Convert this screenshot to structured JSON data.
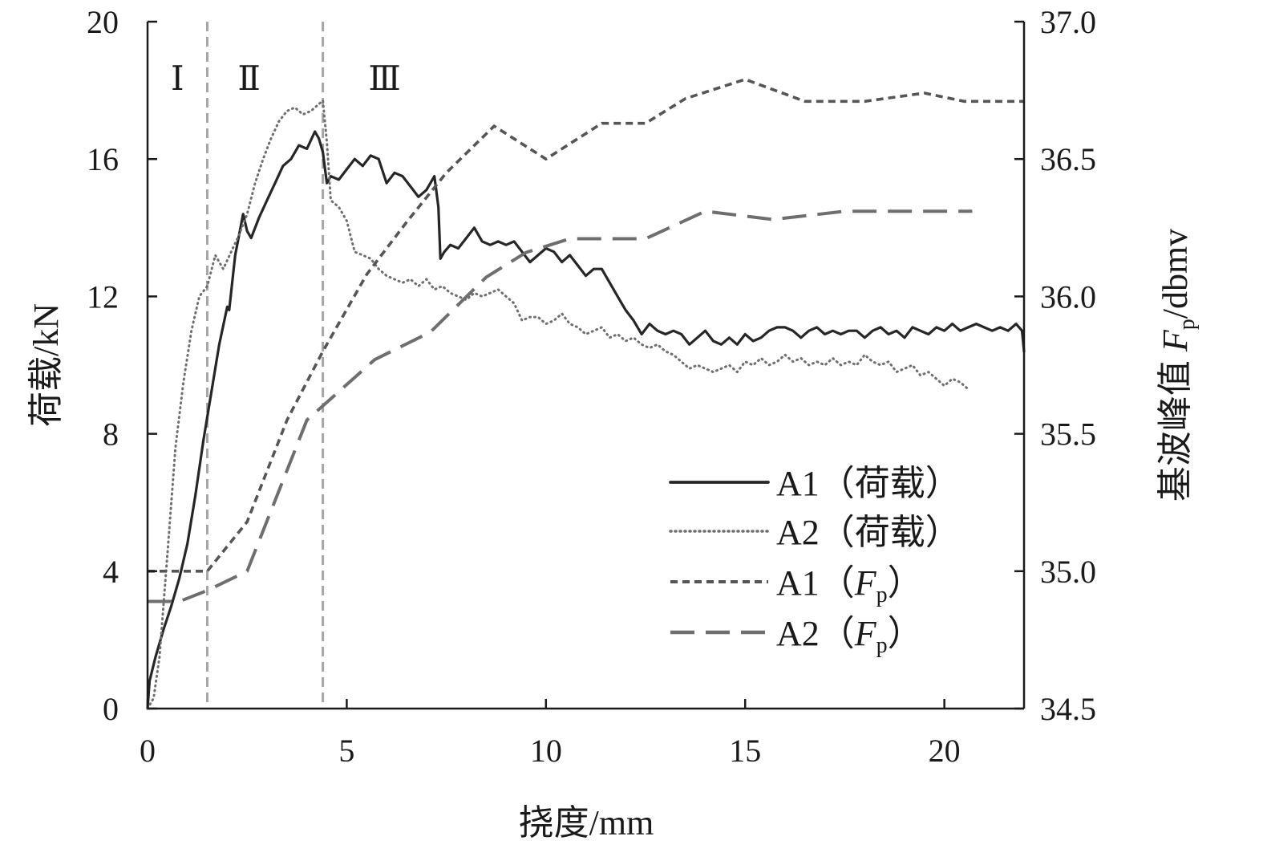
{
  "chart_data": {
    "type": "line",
    "title": "",
    "xlabel": "挠度/mm",
    "ylabel_left": "荷载/kN",
    "ylabel_right": {
      "main": "基波峰值 ",
      "var": "F",
      "sub": "p",
      "unit": "/dbmv"
    },
    "xlim": [
      0,
      22
    ],
    "ylim_left": [
      0,
      20
    ],
    "ylim_right": [
      34.5,
      37.0
    ],
    "x_ticks": [
      "0",
      "5",
      "10",
      "15",
      "20"
    ],
    "x_tick_values": [
      0,
      5,
      10,
      15,
      20
    ],
    "y_left_ticks": [
      "0",
      "4",
      "8",
      "12",
      "16",
      "20"
    ],
    "y_left_tick_values": [
      0,
      4,
      8,
      12,
      16,
      20
    ],
    "y_right_ticks": [
      "34.5",
      "35.0",
      "35.5",
      "36.0",
      "36.5",
      "37.0"
    ],
    "y_right_tick_values": [
      34.5,
      35.0,
      35.5,
      36.0,
      36.5,
      37.0
    ],
    "grid": false,
    "legend_position": "lower-right",
    "stage_boundaries": [
      1.5,
      4.4
    ],
    "stage_labels": [
      {
        "text": "Ⅰ",
        "x": 0.75
      },
      {
        "text": "Ⅱ",
        "x": 2.55
      },
      {
        "text": "Ⅲ",
        "x": 5.95
      }
    ],
    "colors": {
      "axis": "#1a1a1a",
      "boundary": "#a6a6a6",
      "series_dark": "#262626",
      "series_mid": "#555555",
      "series_light": "#6e6e6e"
    },
    "series": [
      {
        "name": "A1（荷载）",
        "legend_parts": [
          "A1（荷载）"
        ],
        "axis": "left",
        "style": "solid",
        "x": [
          0,
          0.05,
          0.2,
          0.4,
          0.6,
          0.8,
          1.0,
          1.2,
          1.4,
          1.6,
          1.8,
          2.0,
          2.05,
          2.2,
          2.4,
          2.5,
          2.6,
          2.8,
          3.0,
          3.2,
          3.4,
          3.6,
          3.8,
          4.0,
          4.2,
          4.3,
          4.4,
          4.5,
          4.6,
          4.8,
          5.0,
          5.2,
          5.4,
          5.6,
          5.8,
          6.0,
          6.2,
          6.4,
          6.6,
          6.8,
          7.0,
          7.2,
          7.3,
          7.35,
          7.45,
          7.6,
          7.8,
          8.0,
          8.2,
          8.4,
          8.6,
          8.8,
          9.0,
          9.2,
          9.4,
          9.6,
          9.8,
          10.0,
          10.2,
          10.4,
          10.6,
          10.8,
          11.0,
          11.2,
          11.4,
          11.6,
          11.8,
          12.0,
          12.2,
          12.4,
          12.6,
          12.8,
          13.0,
          13.2,
          13.4,
          13.6,
          13.8,
          14.0,
          14.2,
          14.4,
          14.6,
          14.8,
          15.0,
          15.2,
          15.4,
          15.6,
          15.8,
          16.0,
          16.2,
          16.4,
          16.6,
          16.8,
          17.0,
          17.2,
          17.4,
          17.6,
          17.8,
          18.0,
          18.2,
          18.4,
          18.6,
          18.8,
          19.0,
          19.2,
          19.4,
          19.6,
          19.8,
          20.0,
          20.2,
          20.4,
          20.6,
          20.8,
          21.0,
          21.2,
          21.4,
          21.6,
          21.8,
          21.95,
          22.0
        ],
        "y": [
          0,
          0.8,
          1.5,
          2.3,
          3.0,
          3.8,
          4.8,
          6.2,
          7.8,
          9.2,
          10.6,
          11.7,
          11.6,
          13.2,
          14.4,
          13.9,
          13.7,
          14.3,
          14.8,
          15.3,
          15.8,
          16.0,
          16.4,
          16.3,
          16.8,
          16.6,
          16.2,
          15.3,
          15.5,
          15.4,
          15.7,
          16.0,
          15.8,
          16.1,
          16.0,
          15.3,
          15.6,
          15.5,
          15.2,
          14.9,
          15.1,
          15.5,
          14.6,
          13.1,
          13.3,
          13.5,
          13.4,
          13.7,
          14.0,
          13.6,
          13.5,
          13.6,
          13.5,
          13.6,
          13.3,
          13.0,
          13.2,
          13.4,
          13.3,
          13.0,
          13.2,
          12.9,
          12.6,
          12.8,
          12.8,
          12.4,
          12.0,
          11.6,
          11.3,
          10.9,
          11.2,
          11.0,
          10.9,
          11.0,
          10.9,
          10.6,
          10.8,
          11.0,
          10.7,
          10.6,
          10.8,
          10.6,
          10.9,
          10.7,
          10.8,
          11.0,
          11.1,
          11.1,
          11.0,
          10.8,
          11.0,
          11.1,
          10.9,
          11.0,
          10.9,
          11.0,
          11.0,
          10.8,
          11.0,
          11.1,
          10.9,
          11.0,
          10.8,
          11.1,
          11.0,
          10.9,
          11.1,
          11.0,
          11.2,
          11.0,
          11.1,
          11.2,
          11.1,
          11.0,
          11.1,
          11.0,
          11.2,
          11.0,
          10.4
        ]
      },
      {
        "name": "A2（荷载）",
        "legend_parts": [
          "A2（荷载）"
        ],
        "axis": "left",
        "style": "dotted",
        "x": [
          0,
          0.15,
          0.3,
          0.5,
          0.7,
          0.9,
          1.1,
          1.3,
          1.5,
          1.7,
          1.9,
          2.1,
          2.3,
          2.5,
          2.7,
          2.9,
          3.1,
          3.3,
          3.5,
          3.7,
          3.9,
          4.1,
          4.3,
          4.4,
          4.5,
          4.6,
          4.8,
          5.0,
          5.2,
          5.4,
          5.6,
          5.8,
          6.0,
          6.2,
          6.4,
          6.6,
          6.8,
          7.0,
          7.2,
          7.4,
          7.6,
          7.8,
          8.0,
          8.2,
          8.4,
          8.6,
          8.8,
          9.0,
          9.2,
          9.4,
          9.6,
          9.8,
          10.0,
          10.2,
          10.4,
          10.6,
          10.8,
          11.0,
          11.2,
          11.4,
          11.6,
          11.8,
          12.0,
          12.2,
          12.4,
          12.6,
          12.8,
          13.0,
          13.2,
          13.4,
          13.6,
          13.8,
          14.0,
          14.2,
          14.4,
          14.6,
          14.8,
          15.0,
          15.2,
          15.4,
          15.6,
          15.8,
          16.0,
          16.2,
          16.4,
          16.6,
          16.8,
          17.0,
          17.2,
          17.4,
          17.6,
          17.8,
          18.0,
          18.2,
          18.4,
          18.6,
          18.8,
          19.0,
          19.2,
          19.4,
          19.6,
          19.8,
          20.0,
          20.2,
          20.4,
          20.6
        ],
        "y": [
          0,
          0.3,
          1.5,
          4.5,
          7.6,
          9.5,
          11.0,
          12.0,
          12.3,
          13.2,
          12.8,
          13.3,
          13.8,
          14.4,
          15.3,
          16.0,
          16.6,
          17.1,
          17.4,
          17.5,
          17.3,
          17.4,
          17.6,
          17.7,
          16.5,
          14.8,
          14.6,
          14.2,
          13.3,
          13.2,
          13.1,
          12.8,
          12.6,
          12.5,
          12.4,
          12.5,
          12.3,
          12.5,
          12.2,
          12.3,
          12.1,
          12.0,
          11.9,
          12.1,
          12.0,
          12.1,
          12.2,
          12.0,
          11.8,
          11.3,
          11.4,
          11.4,
          11.2,
          11.3,
          11.5,
          11.2,
          11.1,
          10.9,
          11.0,
          11.1,
          10.8,
          10.9,
          10.7,
          10.8,
          10.6,
          10.5,
          10.6,
          10.4,
          10.3,
          10.1,
          9.9,
          10.0,
          9.9,
          9.8,
          9.9,
          10.0,
          9.8,
          10.1,
          10.0,
          10.2,
          10.0,
          10.1,
          10.3,
          10.1,
          10.2,
          10.0,
          10.1,
          10.0,
          10.2,
          10.0,
          10.1,
          10.0,
          10.3,
          10.1,
          10.0,
          10.1,
          9.8,
          9.9,
          10.0,
          9.7,
          9.8,
          9.6,
          9.4,
          9.6,
          9.5,
          9.3
        ]
      },
      {
        "name": "A1（Fp）",
        "legend_parts": [
          "A1（",
          "F",
          "p",
          "）"
        ],
        "axis": "right",
        "style": "short-dash",
        "x": [
          0,
          1.5,
          2.5,
          3.5,
          4.4,
          5.5,
          6.5,
          7.5,
          8.7,
          10.0,
          11.4,
          12.5,
          13.5,
          15.0,
          16.5,
          18.0,
          19.5,
          20.5,
          22.0
        ],
        "y": [
          35.0,
          35.0,
          35.18,
          35.55,
          35.8,
          36.08,
          36.27,
          36.45,
          36.62,
          36.5,
          36.63,
          36.63,
          36.72,
          36.79,
          36.71,
          36.71,
          36.74,
          36.71,
          36.71
        ]
      },
      {
        "name": "A2（Fp）",
        "legend_parts": [
          "A2（",
          "F",
          "p",
          "）"
        ],
        "axis": "right",
        "style": "long-dash",
        "x": [
          0,
          0.8,
          1.5,
          2.5,
          4.0,
          5.7,
          7.1,
          8.5,
          9.5,
          10.6,
          12.5,
          14.0,
          15.7,
          17.5,
          19.5,
          20.7
        ],
        "y": [
          34.89,
          34.89,
          34.93,
          35.0,
          35.55,
          35.77,
          35.87,
          36.07,
          36.16,
          36.21,
          36.21,
          36.31,
          36.28,
          36.31,
          36.31,
          36.31
        ]
      }
    ]
  }
}
